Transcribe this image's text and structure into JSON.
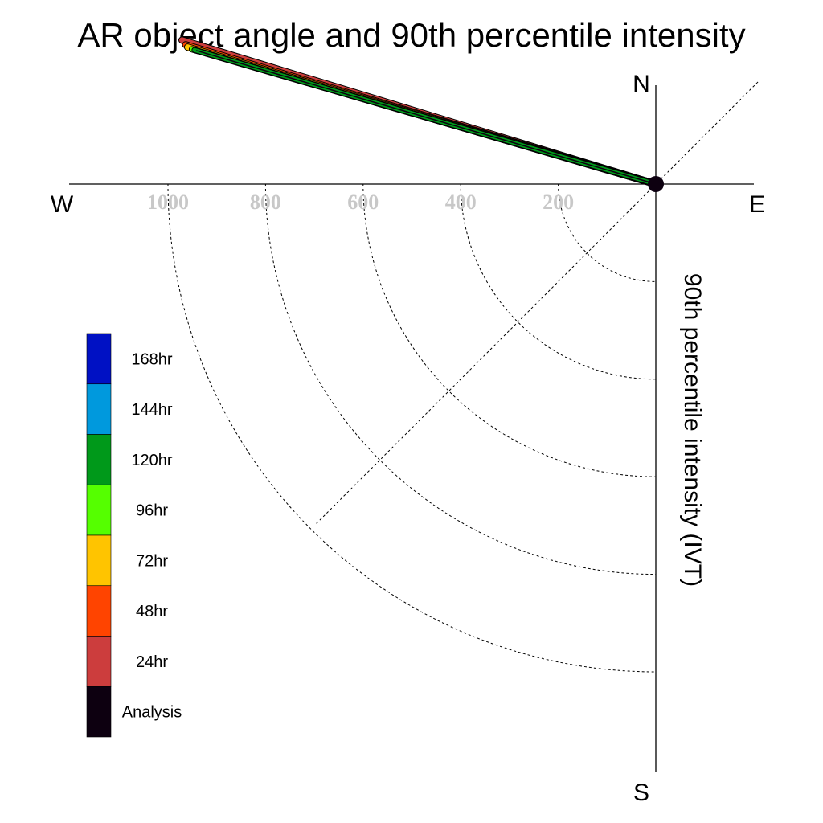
{
  "chart_data": {
    "type": "polar-vector",
    "title": "AR object angle and 90th percentile intensity",
    "radial_axis_label": "90th percentile intensity (IVT)",
    "compass": {
      "north": "N",
      "south": "S",
      "east": "E",
      "west": "W"
    },
    "radial_ticks": [
      200,
      400,
      600,
      800,
      1000
    ],
    "radial_tick_labels": [
      "200",
      "400",
      "600",
      "800",
      "1000"
    ],
    "radial_max": 1200,
    "grid": true,
    "guide_angle_deg": 45,
    "legend_position": "left",
    "legend": [
      {
        "label": "168hr",
        "color": "#0011c4"
      },
      {
        "label": "144hr",
        "color": "#0099dd"
      },
      {
        "label": "120hr",
        "color": "#00991a"
      },
      {
        "label": "96hr",
        "color": "#55ff00"
      },
      {
        "label": "72hr",
        "color": "#ffc400"
      },
      {
        "label": "48hr",
        "color": "#ff4400"
      },
      {
        "label": "24hr",
        "color": "#cc3d3d"
      },
      {
        "label": "Analysis",
        "color": "#0d0010"
      }
    ],
    "series": [
      {
        "name": "24hr",
        "color": "#cc3d3d",
        "angle_deg": 196.9,
        "intensity": 1015
      },
      {
        "name": "48hr",
        "color": "#ff4400",
        "angle_deg": 196.5,
        "intensity": 1005
      },
      {
        "name": "72hr",
        "color": "#ffc400",
        "angle_deg": 196.3,
        "intensity": 1000
      },
      {
        "name": "96hr",
        "color": "#55ff00",
        "angle_deg": 196.2,
        "intensity": 990
      },
      {
        "name": "120hr",
        "color": "#00991a",
        "angle_deg": 196.2,
        "intensity": 985
      },
      {
        "name": "Analysis",
        "color": "#0d0010",
        "angle_deg": 196.2,
        "intensity": 980
      }
    ]
  }
}
